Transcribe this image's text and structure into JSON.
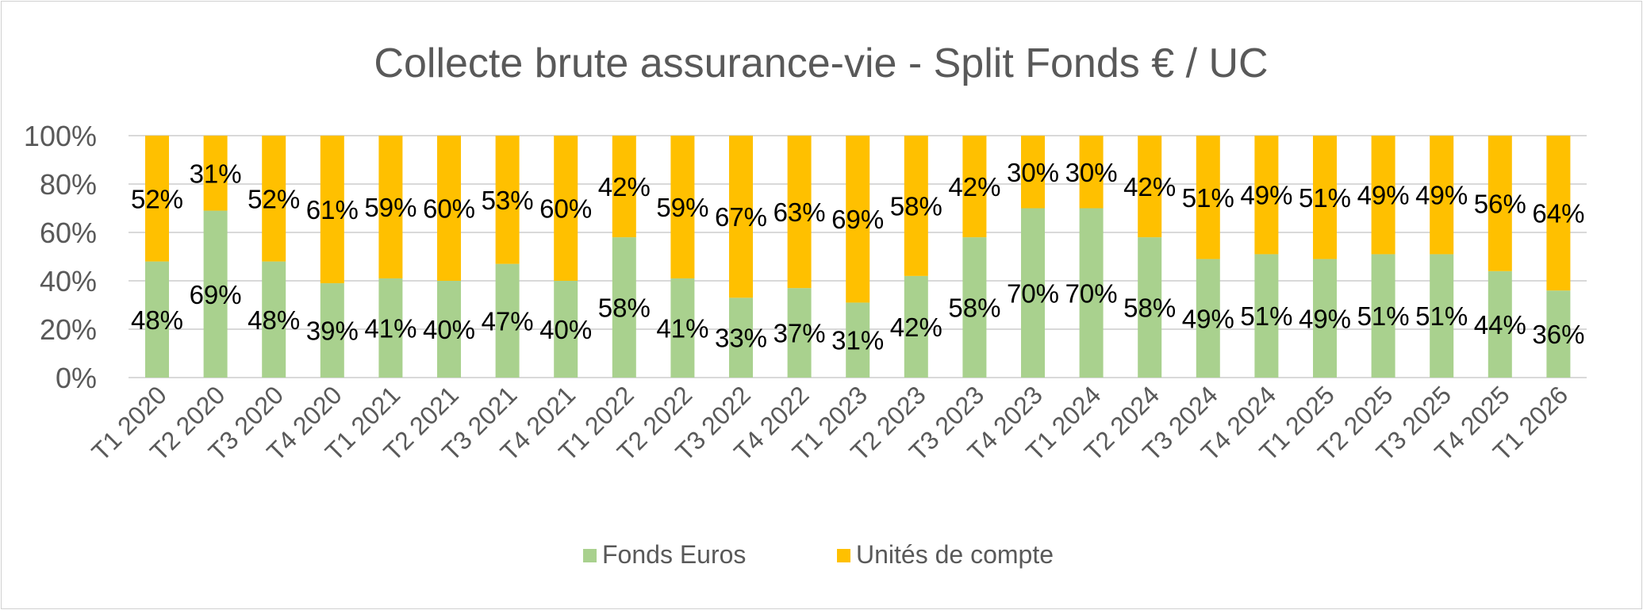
{
  "chart_data": {
    "type": "bar",
    "stacked": true,
    "title": "Collecte brute assurance-vie - Split Fonds € / UC",
    "xlabel": "",
    "ylabel": "",
    "ylim": [
      0,
      100
    ],
    "yticks": [
      "0%",
      "20%",
      "40%",
      "60%",
      "80%",
      "100%"
    ],
    "categories": [
      "T1 2020",
      "T2 2020",
      "T3 2020",
      "T4 2020",
      "T1 2021",
      "T2 2021",
      "T3 2021",
      "T4 2021",
      "T1 2022",
      "T2 2022",
      "T3 2022",
      "T4 2022",
      "T1 2023",
      "T2 2023",
      "T3 2023",
      "T4 2023",
      "T1 2024",
      "T2 2024",
      "T3 2024",
      "T4 2024",
      "T1 2025",
      "T2 2025",
      "T3 2025",
      "T4 2025",
      "T1 2026"
    ],
    "series": [
      {
        "name": "Fonds Euros",
        "color": "#a9d18e",
        "values": [
          48,
          69,
          48,
          39,
          41,
          40,
          47,
          40,
          58,
          41,
          33,
          37,
          31,
          42,
          58,
          70,
          70,
          58,
          49,
          51,
          49,
          51,
          51,
          44,
          36
        ]
      },
      {
        "name": "Unités de compte",
        "color": "#ffc000",
        "values": [
          52,
          31,
          52,
          61,
          59,
          60,
          53,
          60,
          42,
          59,
          67,
          63,
          69,
          58,
          42,
          30,
          30,
          42,
          51,
          49,
          51,
          49,
          49,
          56,
          64
        ]
      }
    ],
    "grid": true,
    "legend": "bottom"
  }
}
